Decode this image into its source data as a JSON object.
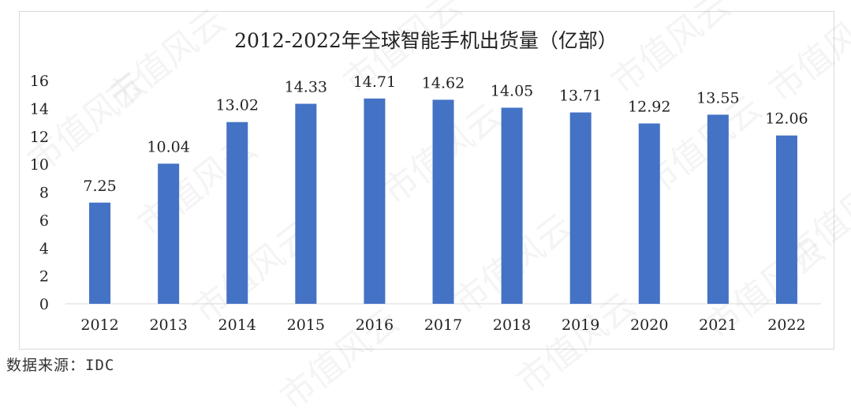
{
  "source_text": "数据来源：IDC",
  "watermark_text": "市值风云",
  "colors": {
    "bar": "#4472C4",
    "axis_text": "#222222",
    "axis_line": "#d9d9d9"
  },
  "chart_data": {
    "type": "bar",
    "title": "2012-2022年全球智能手机出货量（亿部）",
    "categories": [
      "2012",
      "2013",
      "2014",
      "2015",
      "2016",
      "2017",
      "2018",
      "2019",
      "2020",
      "2021",
      "2022"
    ],
    "values": [
      7.25,
      10.04,
      13.02,
      14.33,
      14.71,
      14.62,
      14.05,
      13.71,
      12.92,
      13.55,
      12.06
    ],
    "value_labels": [
      "7.25",
      "10.04",
      "13.02",
      "14.33",
      "14.71",
      "14.62",
      "14.05",
      "13.71",
      "12.92",
      "13.55",
      "12.06"
    ],
    "ylim": [
      0,
      16
    ],
    "yticks": [
      0,
      2,
      4,
      6,
      8,
      10,
      12,
      14,
      16
    ],
    "grid": false,
    "legend": "none"
  }
}
